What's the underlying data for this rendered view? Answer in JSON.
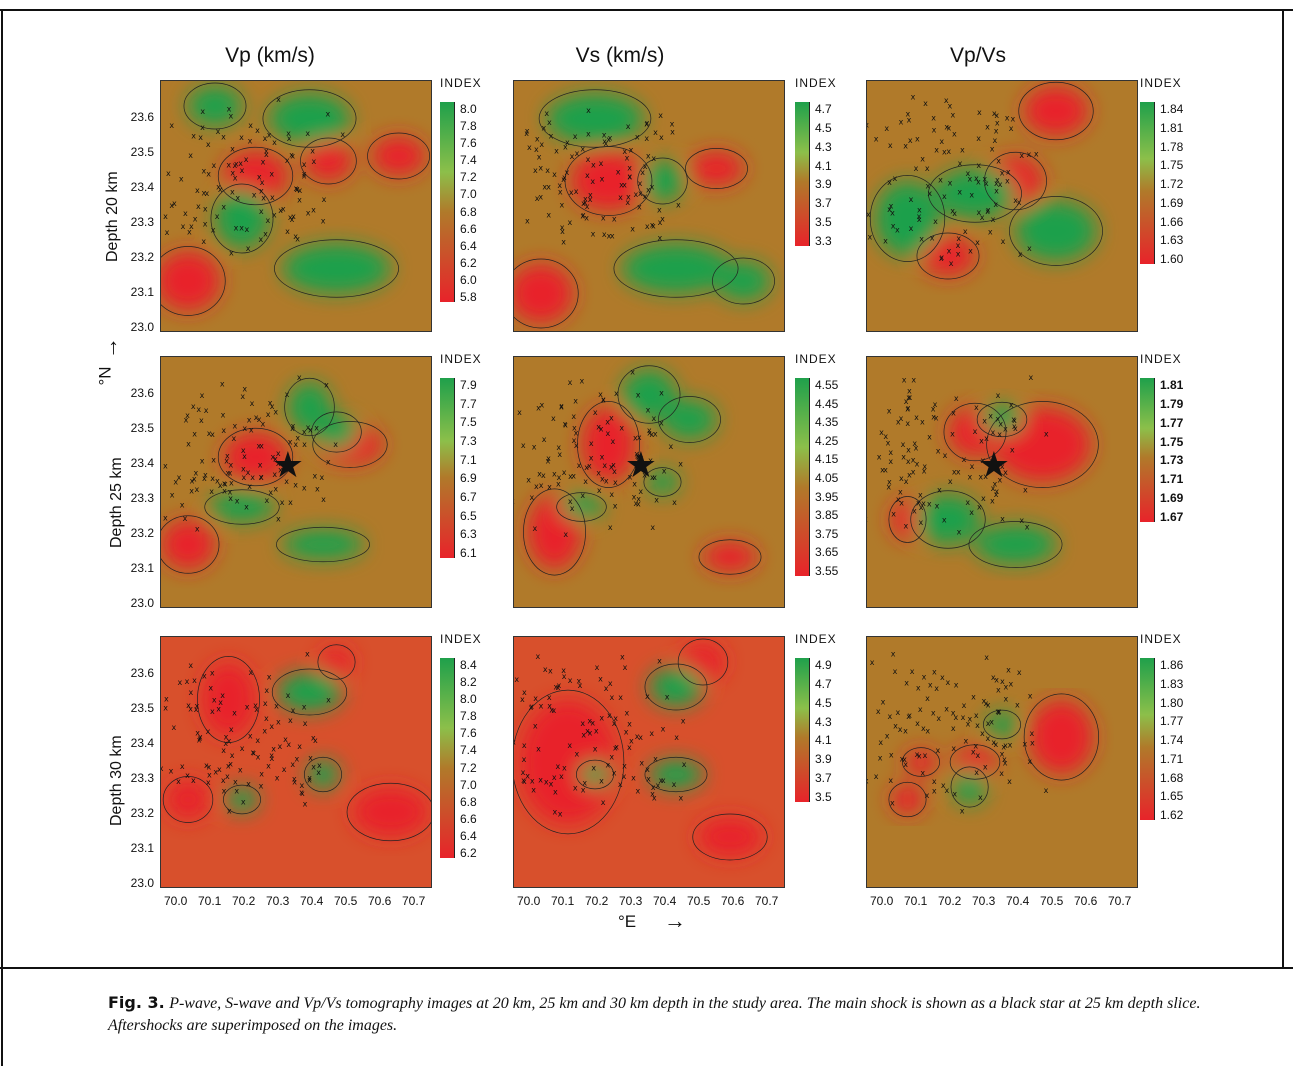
{
  "columns": [
    {
      "title": "Vp (km/s)"
    },
    {
      "title": "Vs (km/s)"
    },
    {
      "title": "Vp/Vs"
    }
  ],
  "rows": [
    {
      "label": "Depth  20 km"
    },
    {
      "label": "Depth  25 km"
    },
    {
      "label": "Depth  30 km"
    }
  ],
  "north_label": "°N",
  "east_label": "°E",
  "lat_ticks": [
    "23.6",
    "23.5",
    "23.4",
    "23.3",
    "23.2",
    "23.1",
    "23.0"
  ],
  "lon_ticks": [
    "70.0",
    "70.1",
    "70.2",
    "70.3",
    "70.4",
    "70.5",
    "70.6",
    "70.7"
  ],
  "colors": {
    "high": "#1fa04b",
    "mid": "#b07a2a",
    "low": "#e8232a"
  },
  "panels": [
    {
      "id": "vp20",
      "index_title": "INDEX",
      "scale": [
        "8.0",
        "7.8",
        "7.6",
        "7.4",
        "7.2",
        "7.0",
        "6.8",
        "6.6",
        "6.4",
        "6.2",
        "6.0",
        "5.8"
      ]
    },
    {
      "id": "vs20",
      "index_title": "INDEX",
      "scale": [
        "4.7",
        "4.5",
        "4.3",
        "4.1",
        "3.9",
        "3.7",
        "3.5",
        "3.3"
      ]
    },
    {
      "id": "vpvs20",
      "index_title": "INDEX",
      "scale": [
        "1.84",
        "1.81",
        "1.78",
        "1.75",
        "1.72",
        "1.69",
        "1.66",
        "1.63",
        "1.60"
      ]
    },
    {
      "id": "vp25",
      "index_title": "INDEX",
      "scale": [
        "7.9",
        "7.7",
        "7.5",
        "7.3",
        "7.1",
        "6.9",
        "6.7",
        "6.5",
        "6.3",
        "6.1"
      ]
    },
    {
      "id": "vs25",
      "index_title": "INDEX",
      "scale": [
        "4.55",
        "4.45",
        "4.35",
        "4.25",
        "4.15",
        "4.05",
        "3.95",
        "3.85",
        "3.75",
        "3.65",
        "3.55"
      ]
    },
    {
      "id": "vpvs25",
      "index_title": "INDEX",
      "scale": [
        "1.81",
        "1.79",
        "1.77",
        "1.75",
        "1.73",
        "1.71",
        "1.69",
        "1.67"
      ]
    },
    {
      "id": "vp30",
      "index_title": "INDEX",
      "scale": [
        "8.4",
        "8.2",
        "8.0",
        "7.8",
        "7.6",
        "7.4",
        "7.2",
        "7.0",
        "6.8",
        "6.6",
        "6.4",
        "6.2"
      ]
    },
    {
      "id": "vs30",
      "index_title": "INDEX",
      "scale": [
        "4.9",
        "4.7",
        "4.5",
        "4.3",
        "4.1",
        "3.9",
        "3.7",
        "3.5"
      ]
    },
    {
      "id": "vpvs30",
      "index_title": "INDEX",
      "scale": [
        "1.86",
        "1.83",
        "1.80",
        "1.77",
        "1.74",
        "1.71",
        "1.68",
        "1.65",
        "1.62"
      ]
    }
  ],
  "caption": {
    "label": "Fig. 3.",
    "text": "P-wave, S-wave and Vp/Vs tomography images at 20 km, 25 km and 30 km depth in the study area. The main shock is shown as a black star at 25 km depth slice. Aftershocks are superimposed on the images."
  }
}
